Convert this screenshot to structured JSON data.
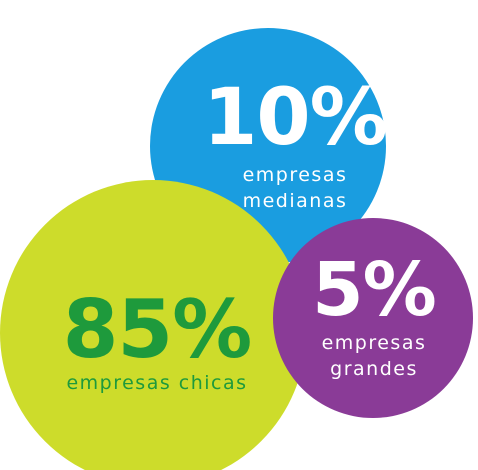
{
  "chart_data": {
    "type": "bubble",
    "categories": [
      "empresas medianas",
      "empresas chicas",
      "empresas grandes"
    ],
    "values": [
      10,
      85,
      5
    ],
    "value_labels": [
      "10%",
      "85%",
      "5%"
    ],
    "colors": [
      "#1a9de0",
      "#cddc2b",
      "#8a3b97"
    ],
    "text_colors": [
      "#ffffff",
      "#1e9a3c",
      "#ffffff"
    ]
  }
}
